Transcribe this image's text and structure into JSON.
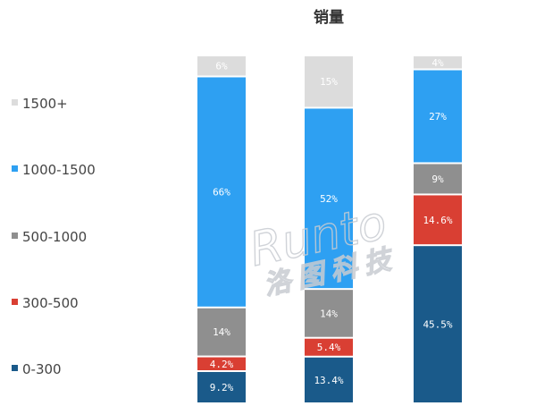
{
  "watermark": {
    "brand": "Runto",
    "brand_cn": "洛图科技"
  },
  "colors": {
    "0-300": "#1a5a8a",
    "300-500": "#d93f33",
    "500-1000": "#8f8f8f",
    "1000-1500": "#2ea0f2",
    "1500+": "#dcdcdc"
  },
  "chart_data": {
    "type": "bar",
    "stacked": true,
    "percent_stacked": true,
    "title": "销量",
    "categories": [
      "",
      "",
      ""
    ],
    "legend_position": "left",
    "grid": false,
    "legend_order_top_to_bottom": [
      "1500+",
      "1000-1500",
      "500-1000",
      "300-500",
      "0-300"
    ],
    "series": [
      {
        "name": "0-300",
        "values": [
          9.2,
          13.4,
          45.5
        ],
        "labels": [
          "9.2%",
          "13.4%",
          "45.5%"
        ]
      },
      {
        "name": "300-500",
        "values": [
          4.2,
          5.4,
          14.6
        ],
        "labels": [
          "4.2%",
          "5.4%",
          "14.6%"
        ]
      },
      {
        "name": "500-1000",
        "values": [
          14,
          14,
          9
        ],
        "labels": [
          "14%",
          "14%",
          "9%"
        ]
      },
      {
        "name": "1000-1500",
        "values": [
          66,
          52,
          27
        ],
        "labels": [
          "66%",
          "52%",
          "27%"
        ]
      },
      {
        "name": "1500+",
        "values": [
          6,
          15,
          4
        ],
        "labels": [
          "6%",
          "15%",
          "4%"
        ]
      }
    ]
  }
}
